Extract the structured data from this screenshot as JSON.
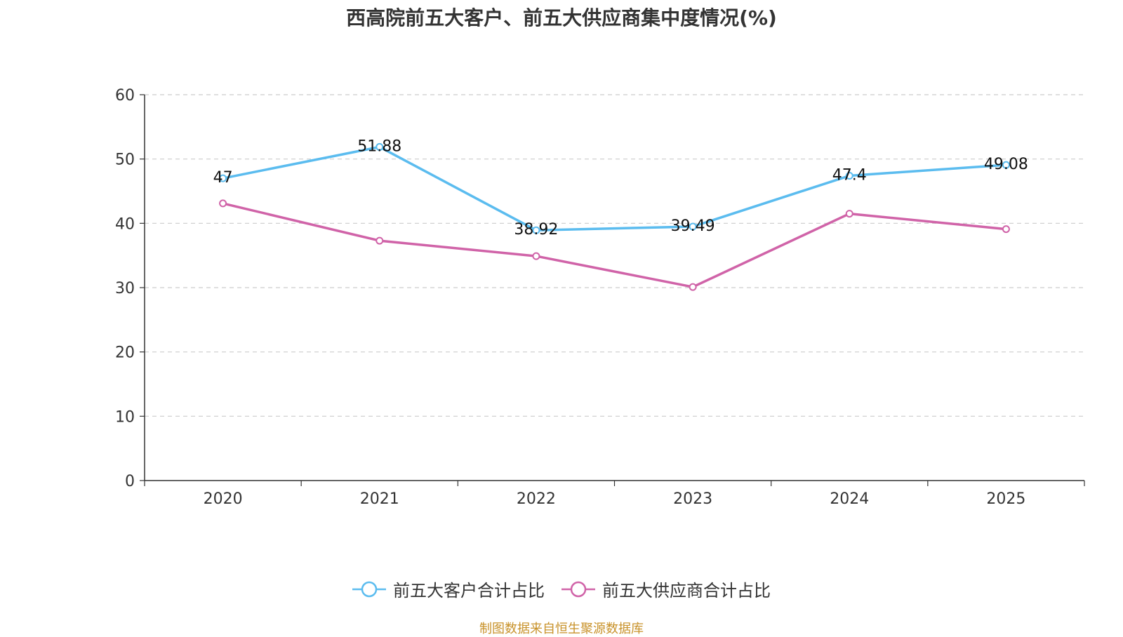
{
  "chart_data": {
    "type": "line",
    "title": "西高院前五大客户、前五大供应商集中度情况(%)",
    "categories": [
      "2020",
      "2021",
      "2022",
      "2023",
      "2024",
      "2025"
    ],
    "ylim": [
      0,
      60
    ],
    "yticks": [
      0,
      10,
      20,
      30,
      40,
      50,
      60
    ],
    "grid": true,
    "legend_position": "bottom",
    "series": [
      {
        "name": "前五大客户合计占比",
        "color": "#5bbcef",
        "values": [
          47,
          51.88,
          38.92,
          39.49,
          47.4,
          49.08
        ],
        "labels": [
          "47",
          "51.88",
          "38.92",
          "39.49",
          "47.4",
          "49.08"
        ],
        "show_labels": true
      },
      {
        "name": "前五大供应商合计占比",
        "color": "#d063a8",
        "values": [
          43.1,
          37.3,
          34.9,
          30.1,
          41.5,
          39.1
        ],
        "show_labels": false
      }
    ]
  },
  "source_note": "制图数据来自恒生聚源数据库"
}
